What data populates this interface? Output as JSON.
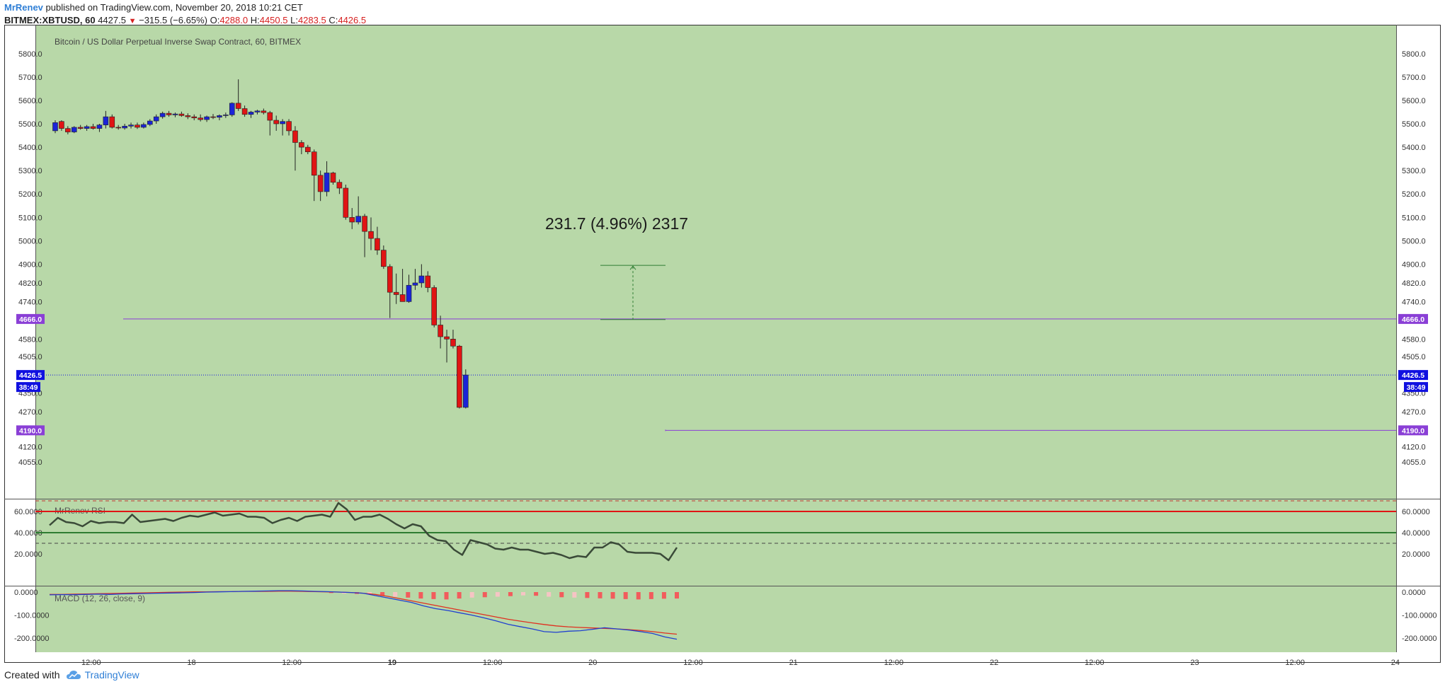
{
  "header": {
    "author": "MrRenev",
    "published": " published on TradingView.com, November 20, 2018 10:21 CET",
    "symbol": "BITMEX:XBTUSD, 60",
    "last": "4427.5",
    "change": "−315.5 (−6.65%)",
    "o_label": "O:",
    "o_value": "4288.0",
    "h_label": "H:",
    "h_value": "4450.5",
    "l_label": "L:",
    "l_value": "4283.5",
    "c_label": "C:",
    "c_value": "4426.5"
  },
  "footer": {
    "created_with": "Created with",
    "brand": "TradingView"
  },
  "colors": {
    "background": "#b8d8a8",
    "up_candle": "#1b24d8",
    "down_candle": "#e01414",
    "support_line": "#8a3fd6",
    "current_price": "#1010e0",
    "rsi_line": "#3a4a38",
    "macd_line": "#2040d0",
    "signal_line": "#e03020",
    "hist_strong": "#f25c5c",
    "hist_light": "#f6c4c4"
  },
  "chart_data": [
    {
      "type": "candlestick",
      "title": "Bitcoin / US Dollar Perpetual Inverse Swap Contract, 60, BITMEX",
      "y_ticks": [
        "5800.0",
        "5700.0",
        "5600.0",
        "5500.0",
        "5400.0",
        "5300.0",
        "5200.0",
        "5100.0",
        "5000.0",
        "4900.0",
        "4820.0",
        "4740.0",
        "4580.0",
        "4505.0",
        "4350.0",
        "4270.0",
        "4120.0",
        "4055.0"
      ],
      "y_tick_values": [
        5800,
        5700,
        5600,
        5500,
        5400,
        5300,
        5200,
        5100,
        5000,
        4900,
        4820,
        4740,
        4580,
        4505,
        4350,
        4270,
        4120,
        4055
      ],
      "x_ticks": [
        "12:00",
        "18",
        "12:00",
        "19",
        "12:00",
        "20",
        "12:00",
        "21",
        "12:00",
        "22",
        "12:00",
        "23",
        "12:00",
        "24"
      ],
      "x_tick_values": [
        0.5,
        1,
        1.5,
        2,
        2.5,
        3,
        3.5,
        4,
        4.5,
        5,
        5.5,
        6,
        6.5,
        7
      ],
      "candles": [
        [
          5470,
          5515,
          5460,
          5505
        ],
        [
          5510,
          5515,
          5470,
          5480
        ],
        [
          5480,
          5490,
          5455,
          5465
        ],
        [
          5465,
          5490,
          5460,
          5485
        ],
        [
          5485,
          5495,
          5475,
          5480
        ],
        [
          5480,
          5495,
          5470,
          5488
        ],
        [
          5488,
          5500,
          5475,
          5480
        ],
        [
          5480,
          5500,
          5465,
          5495
        ],
        [
          5495,
          5555,
          5480,
          5530
        ],
        [
          5530,
          5540,
          5480,
          5485
        ],
        [
          5485,
          5495,
          5475,
          5482
        ],
        [
          5482,
          5500,
          5475,
          5490
        ],
        [
          5490,
          5505,
          5480,
          5495
        ],
        [
          5495,
          5505,
          5478,
          5485
        ],
        [
          5485,
          5505,
          5480,
          5497
        ],
        [
          5497,
          5520,
          5490,
          5512
        ],
        [
          5512,
          5540,
          5500,
          5530
        ],
        [
          5530,
          5552,
          5522,
          5545
        ],
        [
          5545,
          5555,
          5530,
          5538
        ],
        [
          5538,
          5548,
          5528,
          5542
        ],
        [
          5542,
          5552,
          5530,
          5535
        ],
        [
          5535,
          5545,
          5520,
          5530
        ],
        [
          5530,
          5540,
          5515,
          5525
        ],
        [
          5525,
          5540,
          5510,
          5518
        ],
        [
          5518,
          5535,
          5508,
          5530
        ],
        [
          5530,
          5542,
          5520,
          5528
        ],
        [
          5528,
          5540,
          5515,
          5535
        ],
        [
          5535,
          5548,
          5525,
          5538
        ],
        [
          5538,
          5592,
          5530,
          5588
        ],
        [
          5588,
          5690,
          5555,
          5565
        ],
        [
          5565,
          5578,
          5530,
          5540
        ],
        [
          5540,
          5555,
          5525,
          5550
        ],
        [
          5550,
          5560,
          5540,
          5555
        ],
        [
          5555,
          5565,
          5540,
          5548
        ],
        [
          5548,
          5555,
          5450,
          5515
        ],
        [
          5515,
          5535,
          5470,
          5500
        ],
        [
          5500,
          5520,
          5450,
          5510
        ],
        [
          5510,
          5520,
          5450,
          5470
        ],
        [
          5470,
          5490,
          5300,
          5420
        ],
        [
          5420,
          5430,
          5370,
          5400
        ],
        [
          5400,
          5410,
          5370,
          5380
        ],
        [
          5380,
          5390,
          5170,
          5280
        ],
        [
          5280,
          5300,
          5170,
          5210
        ],
        [
          5210,
          5340,
          5190,
          5290
        ],
        [
          5290,
          5295,
          5240,
          5250
        ],
        [
          5250,
          5262,
          5200,
          5225
        ],
        [
          5225,
          5240,
          5090,
          5100
        ],
        [
          5100,
          5140,
          5050,
          5080
        ],
        [
          5080,
          5190,
          5070,
          5105
        ],
        [
          5105,
          5115,
          4930,
          5040
        ],
        [
          5040,
          5100,
          4960,
          5010
        ],
        [
          5010,
          5060,
          4940,
          4960
        ],
        [
          4960,
          4980,
          4880,
          4890
        ],
        [
          4890,
          4900,
          4670,
          4780
        ],
        [
          4780,
          4860,
          4730,
          4770
        ],
        [
          4770,
          4880,
          4740,
          4740
        ],
        [
          4740,
          4855,
          4735,
          4810
        ],
        [
          4810,
          4880,
          4790,
          4820
        ],
        [
          4820,
          4900,
          4800,
          4850
        ],
        [
          4850,
          4870,
          4780,
          4800
        ],
        [
          4800,
          4810,
          4630,
          4640
        ],
        [
          4640,
          4680,
          4540,
          4590
        ],
        [
          4590,
          4620,
          4480,
          4580
        ],
        [
          4580,
          4620,
          4540,
          4550
        ],
        [
          4550,
          4555,
          4283.5,
          4288
        ],
        [
          4288,
          4450.5,
          4283.5,
          4426.5
        ]
      ],
      "annotation": {
        "text": "231.7 (4.96%) 2317",
        "top_price": 4895,
        "bottom_price": 4663.3
      },
      "horizontal_levels": [
        {
          "label": "4666.0",
          "value": 4666
        },
        {
          "label": "4190.0",
          "value": 4190
        }
      ],
      "current_price": {
        "label": "4426.5",
        "value": 4426.5,
        "countdown": "38:49"
      }
    },
    {
      "type": "line",
      "title": "MrRenev RSI",
      "y_ticks": [
        "60.0000",
        "40.0000",
        "20.0000"
      ],
      "y_tick_values": [
        60,
        40,
        20
      ],
      "levels": [
        60,
        40
      ],
      "dashed_levels": [
        70,
        30
      ],
      "values": [
        47,
        54,
        50,
        49,
        46,
        51,
        49,
        50,
        50,
        49,
        57,
        50,
        51,
        52,
        53,
        51,
        54,
        56,
        55,
        57,
        59,
        56,
        57,
        58,
        55,
        55,
        54,
        49,
        52,
        54,
        51,
        55,
        56,
        57,
        55,
        68,
        62,
        52,
        55,
        55,
        57,
        53,
        48,
        44,
        48,
        46,
        37,
        33,
        32,
        24,
        19,
        33,
        31,
        29,
        25,
        24,
        26,
        24,
        24,
        22,
        20,
        21,
        19,
        16,
        18,
        17,
        26,
        26,
        31,
        29,
        22,
        21,
        21,
        21,
        20,
        14,
        26
      ]
    },
    {
      "type": "line",
      "title": "MACD (12, 26, close, 9)",
      "y_ticks": [
        "0.0000",
        "-100.0000",
        "-200.0000"
      ],
      "y_tick_values": [
        0,
        -100,
        -200
      ],
      "macd": [
        -12,
        -11,
        -11,
        -10,
        -9,
        -10,
        -8,
        -7,
        -6,
        -5,
        -4,
        -3,
        -2,
        0,
        1,
        2,
        3,
        4,
        5,
        6,
        6,
        5,
        3,
        2,
        0,
        -2,
        -5,
        -15,
        -25,
        -35,
        -45,
        -60,
        -72,
        -80,
        -90,
        -100,
        -112,
        -125,
        -140,
        -150,
        -160,
        -172,
        -175,
        -170,
        -168,
        -162,
        -155,
        -160,
        -165,
        -172,
        -180,
        -195,
        -205
      ],
      "signal": [
        -10,
        -10,
        -9,
        -8,
        -7,
        -6,
        -5,
        -4,
        -3,
        -2,
        -1,
        0,
        1,
        1,
        2,
        2,
        3,
        3,
        3,
        4,
        4,
        3,
        2,
        1,
        0,
        -2,
        -5,
        -10,
        -18,
        -28,
        -38,
        -48,
        -58,
        -68,
        -78,
        -88,
        -98,
        -108,
        -118,
        -126,
        -134,
        -141,
        -147,
        -151,
        -154,
        -156,
        -158,
        -160,
        -163,
        -167,
        -172,
        -178,
        -183
      ],
      "histogram": [
        0,
        0,
        0,
        0,
        0,
        0,
        0,
        0,
        0,
        0,
        0,
        0,
        0,
        0,
        0,
        0,
        0,
        0,
        0,
        0,
        0,
        0,
        -5,
        -8,
        -10,
        -15,
        -20,
        -25,
        -30,
        -35,
        -38,
        -40,
        -35,
        -30,
        -28,
        -25,
        -22,
        -18,
        -20,
        -25,
        -28,
        -30,
        -32,
        -34,
        -36,
        -38,
        -40,
        -38,
        -36,
        -35
      ]
    }
  ]
}
